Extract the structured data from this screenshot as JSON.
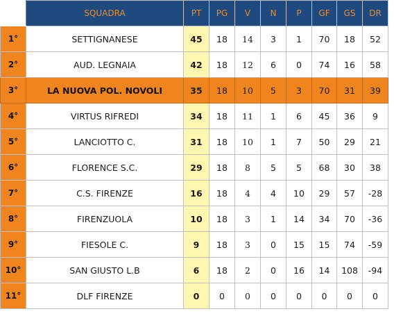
{
  "table": {
    "headers": [
      "SQUADRA",
      "PT",
      "PG",
      "V",
      "N",
      "P",
      "GF",
      "GS",
      "DR"
    ],
    "highlight_row": 2,
    "rows": [
      {
        "pos": "1°",
        "team": "SETTIGNANESE",
        "pt": "45",
        "pg": "18",
        "v": "14",
        "n": "3",
        "p": "1",
        "gf": "70",
        "gs": "18",
        "dr": "52"
      },
      {
        "pos": "2°",
        "team": "AUD. LEGNAIA",
        "pt": "42",
        "pg": "18",
        "v": "12",
        "n": "6",
        "p": "0",
        "gf": "74",
        "gs": "16",
        "dr": "58"
      },
      {
        "pos": "3°",
        "team": "LA NUOVA POL. NOVOLI",
        "pt": "35",
        "pg": "18",
        "v": "10",
        "n": "5",
        "p": "3",
        "gf": "70",
        "gs": "31",
        "dr": "39"
      },
      {
        "pos": "4°",
        "team": "VIRTUS RIFREDI",
        "pt": "34",
        "pg": "18",
        "v": "11",
        "n": "1",
        "p": "6",
        "gf": "45",
        "gs": "36",
        "dr": "9"
      },
      {
        "pos": "5°",
        "team": "LANCIOTTO C.",
        "pt": "31",
        "pg": "18",
        "v": "10",
        "n": "1",
        "p": "7",
        "gf": "50",
        "gs": "29",
        "dr": "21"
      },
      {
        "pos": "6°",
        "team": "FLORENCE S.C.",
        "pt": "29",
        "pg": "18",
        "v": "8",
        "n": "5",
        "p": "5",
        "gf": "68",
        "gs": "30",
        "dr": "38"
      },
      {
        "pos": "7°",
        "team": "C.S. FIRENZE",
        "pt": "16",
        "pg": "18",
        "v": "4",
        "n": "4",
        "p": "10",
        "gf": "29",
        "gs": "57",
        "dr": "-28"
      },
      {
        "pos": "8°",
        "team": "FIRENZUOLA",
        "pt": "10",
        "pg": "18",
        "v": "3",
        "n": "1",
        "p": "14",
        "gf": "34",
        "gs": "70",
        "dr": "-36"
      },
      {
        "pos": "9°",
        "team": "FIESOLE C.",
        "pt": "9",
        "pg": "18",
        "v": "3",
        "n": "0",
        "p": "15",
        "gf": "15",
        "gs": "74",
        "dr": "-59"
      },
      {
        "pos": "10°",
        "team": "SAN GIUSTO L.B",
        "pt": "6",
        "pg": "18",
        "v": "2",
        "n": "0",
        "p": "16",
        "gf": "14",
        "gs": "108",
        "dr": "-94"
      },
      {
        "pos": "11°",
        "team": "DLF FIRENZE",
        "pt": "0",
        "pg": "0",
        "v": "0",
        "n": "0",
        "p": "0",
        "gf": "0",
        "gs": "0",
        "dr": "0"
      }
    ]
  },
  "colors": {
    "header_bg": "#1e4a80",
    "header_text": "#f08a24",
    "position_bg": "#f0841e",
    "points_bg": "#fff7b0",
    "highlight_bg": "#f0841e"
  }
}
